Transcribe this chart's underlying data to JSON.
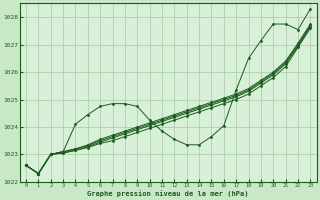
{
  "title": "Graphe pression niveau de la mer (hPa)",
  "background_color": "#c8e8c8",
  "plot_bg_color": "#d8efd8",
  "grid_color": "#a8c8a8",
  "line_color": "#1a5c1a",
  "marker_color": "#1a5c1a",
  "x_ticks": [
    0,
    1,
    2,
    3,
    4,
    5,
    6,
    7,
    8,
    9,
    10,
    11,
    12,
    13,
    14,
    15,
    16,
    17,
    18,
    19,
    20,
    21,
    22,
    23
  ],
  "ylim": [
    1022.0,
    1028.5
  ],
  "yticks": [
    1022,
    1023,
    1024,
    1025,
    1026,
    1027,
    1028
  ],
  "series": [
    [
      1022.6,
      1022.3,
      1023.0,
      1023.05,
      1023.15,
      1023.25,
      1023.4,
      1023.5,
      1023.65,
      1023.8,
      1023.95,
      1024.1,
      1024.25,
      1024.4,
      1024.55,
      1024.7,
      1024.85,
      1025.0,
      1025.2,
      1025.5,
      1025.8,
      1026.2,
      1026.9,
      1027.6
    ],
    [
      1022.6,
      1022.3,
      1023.0,
      1023.05,
      1023.15,
      1023.28,
      1023.45,
      1023.6,
      1023.75,
      1023.9,
      1024.05,
      1024.2,
      1024.35,
      1024.5,
      1024.65,
      1024.8,
      1024.95,
      1025.1,
      1025.3,
      1025.6,
      1025.9,
      1026.3,
      1026.95,
      1027.65
    ],
    [
      1022.6,
      1022.3,
      1023.0,
      1023.1,
      1023.2,
      1023.32,
      1023.5,
      1023.65,
      1023.8,
      1023.95,
      1024.1,
      1024.25,
      1024.4,
      1024.55,
      1024.7,
      1024.85,
      1025.0,
      1025.15,
      1025.35,
      1025.65,
      1025.95,
      1026.35,
      1027.0,
      1027.7
    ],
    [
      1022.6,
      1022.3,
      1023.0,
      1023.1,
      1023.2,
      1023.35,
      1023.55,
      1023.7,
      1023.85,
      1024.0,
      1024.15,
      1024.3,
      1024.45,
      1024.6,
      1024.75,
      1024.9,
      1025.05,
      1025.2,
      1025.4,
      1025.7,
      1026.0,
      1026.4,
      1027.05,
      1027.75
    ],
    [
      1022.6,
      1022.3,
      1023.0,
      1023.1,
      1024.1,
      1024.45,
      1024.75,
      1024.85,
      1024.85,
      1024.75,
      1024.25,
      1023.85,
      1023.55,
      1023.35,
      1023.35,
      1023.65,
      1024.05,
      1025.35,
      1026.5,
      1027.15,
      1027.75,
      1027.75,
      1027.55,
      1028.3
    ]
  ]
}
